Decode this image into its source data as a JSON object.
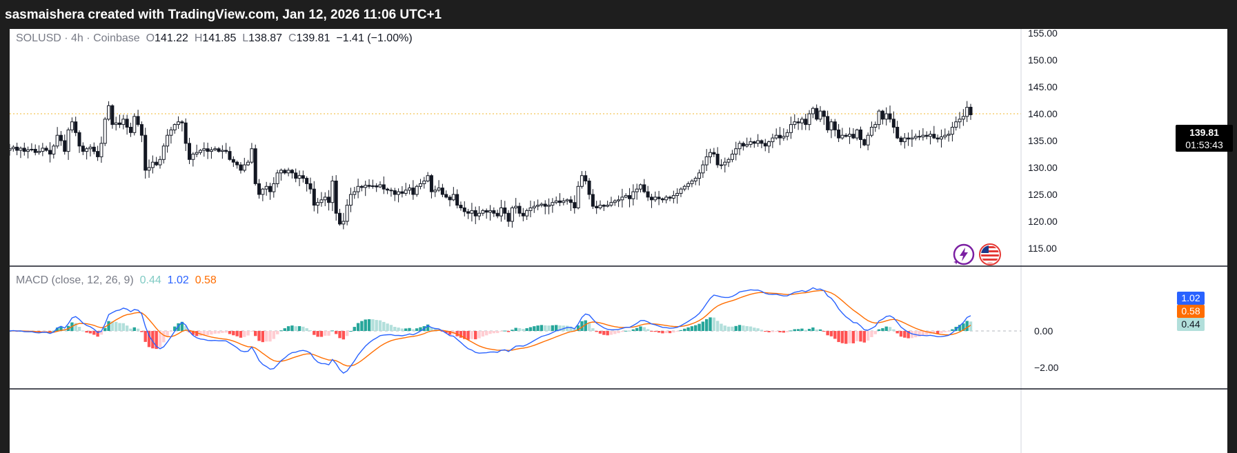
{
  "header": {
    "caption": "sasmaishera created with TradingView.com, Jan 12, 2026 11:06 UTC+1"
  },
  "legend": {
    "symbol": "SOLUSD",
    "separator": "·",
    "interval": "4h",
    "exchange": "Coinbase",
    "o_key": "O",
    "o_val": "141.22",
    "h_key": "H",
    "h_val": "141.85",
    "l_key": "L",
    "l_val": "138.87",
    "c_key": "C",
    "c_val": "139.81",
    "change": "−1.41 (−1.00%)"
  },
  "macd_legend": {
    "label": "MACD (close, 12, 26, 9)",
    "hist": "0.44",
    "macd": "1.02",
    "signal": "0.58"
  },
  "last_price": {
    "price": "139.81",
    "countdown": "01:53:43"
  },
  "macd_badges": {
    "macd": "1.02",
    "signal": "0.58",
    "hist": "0.44"
  },
  "icons": {
    "left": "lightning-bolt-icon",
    "right": "us-flag-icon"
  },
  "colors": {
    "up": "#089981",
    "down": "#f23645",
    "candle": "#131722",
    "macd_line": "#2962ff",
    "signal_line": "#ff6d00",
    "hist_pos_strong": "#26a69a",
    "hist_pos_weak": "#b2dfdb",
    "hist_neg_strong": "#ff5252",
    "hist_neg_weak": "#ffcdd2",
    "price_line": "#f0b429"
  },
  "chart_data": [
    {
      "type": "candlestick",
      "symbol": "SOLUSD",
      "interval": "4h",
      "exchange": "Coinbase",
      "y_ticks": [
        "155.00",
        "150.00",
        "145.00",
        "140.00",
        "135.00",
        "130.00",
        "125.00",
        "120.00",
        "115.00"
      ],
      "ylim": [
        112,
        157
      ],
      "last_price": 139.81,
      "last_ohlc": {
        "open": 141.22,
        "high": 141.85,
        "low": 138.87,
        "close": 139.81
      },
      "closes": [
        133.5,
        133.8,
        133.2,
        133.6,
        133.0,
        133.3,
        133.4,
        132.8,
        133.0,
        133.6,
        133.2,
        132.5,
        134.0,
        136.0,
        135.0,
        133.0,
        137.0,
        138.5,
        136.5,
        134.0,
        133.0,
        133.5,
        133.8,
        133.0,
        132.0,
        134.5,
        139.0,
        141.5,
        138.0,
        138.3,
        138.0,
        139.0,
        137.5,
        136.5,
        139.5,
        138.0,
        136.0,
        129.5,
        130.0,
        131.0,
        130.5,
        131.5,
        134.0,
        136.0,
        137.0,
        138.0,
        138.5,
        138.3,
        134.5,
        131.5,
        132.5,
        132.8,
        133.2,
        133.5,
        133.0,
        133.3,
        133.5,
        133.0,
        133.2,
        133.0,
        131.5,
        131.0,
        130.5,
        129.5,
        130.5,
        131.0,
        133.5,
        127.0,
        125.0,
        126.0,
        126.5,
        125.5,
        127.0,
        129.0,
        129.5,
        129.0,
        129.5,
        129.0,
        128.0,
        128.5,
        128.0,
        127.0,
        126.0,
        123.0,
        123.5,
        124.0,
        124.5,
        123.5,
        127.5,
        121.5,
        119.5,
        120.0,
        123.0,
        125.0,
        125.5,
        126.5,
        126.3,
        126.7,
        126.5,
        126.6,
        126.4,
        126.8,
        126.0,
        125.8,
        125.7,
        125.0,
        125.5,
        125.2,
        125.8,
        126.2,
        125.0,
        126.5,
        127.0,
        127.5,
        128.5,
        125.5,
        125.8,
        126.2,
        125.0,
        124.5,
        124.0,
        125.0,
        123.0,
        122.5,
        121.8,
        121.5,
        122.0,
        121.0,
        121.5,
        122.0,
        121.7,
        122.0,
        121.5,
        121.0,
        122.5,
        121.5,
        120.0,
        122.5,
        122.8,
        121.5,
        121.0,
        122.0,
        122.5,
        122.8,
        123.0,
        123.2,
        122.8,
        123.0,
        123.5,
        123.8,
        123.5,
        123.8,
        124.0,
        123.5,
        122.5,
        126.5,
        128.5,
        127.5,
        125.0,
        122.8,
        122.5,
        123.0,
        122.8,
        123.0,
        123.5,
        123.8,
        124.0,
        124.5,
        124.8,
        124.2,
        125.5,
        126.0,
        126.8,
        125.5,
        124.5,
        124.0,
        124.5,
        124.2,
        124.0,
        124.5,
        124.3,
        124.8,
        125.2,
        126.0,
        126.5,
        127.0,
        127.5,
        128.0,
        129.0,
        130.5,
        132.0,
        132.8,
        132.5,
        130.5,
        130.5,
        131.0,
        131.5,
        132.5,
        133.5,
        134.5,
        134.0,
        134.3,
        134.8,
        134.5,
        135.0,
        134.5,
        134.0,
        134.8,
        135.5,
        136.0,
        135.5,
        135.8,
        136.5,
        138.0,
        138.5,
        138.3,
        139.0,
        138.0,
        140.0,
        141.0,
        139.0,
        140.5,
        139.5,
        137.0,
        138.5,
        137.0,
        135.5,
        136.0,
        135.8,
        136.2,
        135.5,
        137.0,
        135.2,
        134.2,
        136.0,
        137.5,
        138.0,
        140.5,
        139.0,
        140.0,
        139.0,
        137.5,
        135.5,
        134.8,
        135.5,
        135.3,
        135.5,
        135.8,
        135.7,
        136.0,
        135.8,
        136.2,
        135.5,
        135.3,
        135.7,
        136.0,
        136.2,
        137.5,
        138.5,
        139.0,
        139.5,
        141.2,
        139.81
      ]
    },
    {
      "type": "line",
      "name": "MACD (close, 12, 26, 9)",
      "y_ticks": [
        "0.00",
        "−2.00"
      ],
      "last_values": {
        "histogram": 0.44,
        "macd": 1.02,
        "signal": 0.58
      }
    }
  ]
}
